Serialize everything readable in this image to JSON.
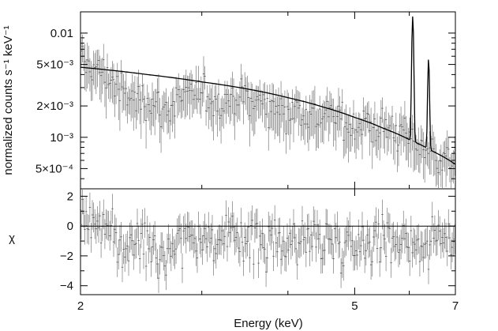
{
  "chart_data": [
    {
      "type": "scatter",
      "panel": "spectrum",
      "title": "",
      "xlabel": "Energy (keV)",
      "ylabel": "normalized counts s⁻¹ keV⁻¹",
      "xscale": "log",
      "yscale": "log",
      "xlim": [
        2,
        7
      ],
      "ylim": [
        0.00032,
        0.016
      ],
      "x_ticks": [
        2,
        5,
        7
      ],
      "y_ticks": [
        0.01,
        0.005,
        0.002,
        0.001,
        0.0005
      ],
      "y_tick_labels": [
        "0.01",
        "5×10⁻³",
        "2×10⁻³",
        "10⁻³",
        "5×10⁻⁴"
      ],
      "series": [
        {
          "role": "data with error bars",
          "x": [
            2.02,
            2.06,
            2.1,
            2.15,
            2.2,
            2.3,
            2.4,
            2.5,
            2.65,
            2.8,
            3.0,
            3.2,
            3.4,
            3.6,
            3.8,
            4.0,
            4.3,
            4.6,
            5.0,
            5.3,
            5.6,
            5.9,
            6.2,
            6.5,
            6.8
          ],
          "y": [
            0.0052,
            0.0049,
            0.0045,
            0.0042,
            0.0038,
            0.0026,
            0.0023,
            0.0024,
            0.0018,
            0.0024,
            0.0026,
            0.0022,
            0.0025,
            0.0022,
            0.002,
            0.0019,
            0.0017,
            0.0016,
            0.0013,
            0.0013,
            0.0012,
            0.0011,
            0.00085,
            0.0007,
            0.0006
          ]
        },
        {
          "role": "model",
          "x": [
            2.0,
            2.5,
            3.0,
            3.5,
            4.0,
            4.5,
            5.0,
            5.5,
            6.0,
            6.5,
            7.0
          ],
          "y": [
            0.0047,
            0.004,
            0.0034,
            0.0029,
            0.0024,
            0.00195,
            0.00155,
            0.00122,
            0.00095,
            0.00073,
            0.00055
          ],
          "lines": [
            {
              "energy": 6.07,
              "peak": 0.0145
            },
            {
              "energy": 6.4,
              "peak": 0.0057
            }
          ]
        }
      ]
    },
    {
      "type": "scatter",
      "panel": "residuals",
      "xlabel": "Energy (keV)",
      "ylabel": "χ",
      "xscale": "log",
      "xlim": [
        2,
        7
      ],
      "ylim": [
        -4.6,
        2.5
      ],
      "x_ticks": [
        2,
        5,
        7
      ],
      "y_ticks": [
        2,
        0,
        -2,
        -4
      ],
      "y_tick_labels": [
        "2",
        "0",
        "−2",
        "−4"
      ],
      "zero_line": 0,
      "series": [
        {
          "role": "residuals",
          "x": [
            2.02,
            2.06,
            2.1,
            2.15,
            2.2,
            2.3,
            2.4,
            2.5,
            2.65,
            2.8,
            3.0,
            3.2,
            3.4,
            3.6,
            3.8,
            4.0,
            4.3,
            4.6,
            5.0,
            5.3,
            5.6,
            5.9,
            6.2,
            6.5,
            6.8
          ],
          "y": [
            0.6,
            0.5,
            0.2,
            0.0,
            -0.4,
            -1.6,
            -1.3,
            -0.6,
            -2.0,
            -0.5,
            -0.7,
            -1.2,
            -0.5,
            -1.0,
            -1.3,
            -1.0,
            -0.8,
            -0.9,
            -1.1,
            -0.8,
            -0.9,
            -0.7,
            -1.4,
            -1.0,
            -0.8
          ]
        }
      ]
    }
  ]
}
